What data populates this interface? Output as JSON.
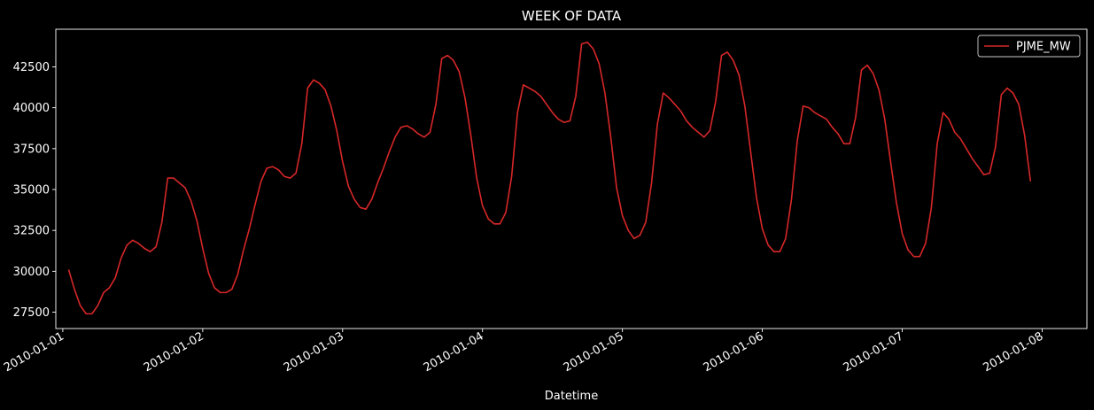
{
  "chart_data": {
    "type": "line",
    "title": "WEEK OF DATA",
    "xlabel": "Datetime",
    "ylabel": "",
    "legend_position": "top-right",
    "grid": false,
    "ylim": [
      26500,
      44800
    ],
    "xlim": [
      -0.05,
      7.32
    ],
    "x_unit": "days since 2010-01-01 00:00",
    "x_ticks": [
      {
        "value": 0,
        "label": "2010-01-01"
      },
      {
        "value": 1,
        "label": "2010-01-02"
      },
      {
        "value": 2,
        "label": "2010-01-03"
      },
      {
        "value": 3,
        "label": "2010-01-04"
      },
      {
        "value": 4,
        "label": "2010-01-05"
      },
      {
        "value": 5,
        "label": "2010-01-06"
      },
      {
        "value": 6,
        "label": "2010-01-07"
      },
      {
        "value": 7,
        "label": "2010-01-08"
      }
    ],
    "y_ticks": [
      27500,
      30000,
      32500,
      35000,
      37500,
      40000,
      42500
    ],
    "y_tick_labels": [
      "27500",
      "30000",
      "32500",
      "35000",
      "37500",
      "40000",
      "42500"
    ],
    "colors": {
      "background": "#000000",
      "text": "#ffffff",
      "line": "#d62728"
    },
    "series": [
      {
        "name": "PJME_MW",
        "color": "#d62728",
        "start_hour": 1,
        "step_hours": 1,
        "values": [
          30100,
          28900,
          27900,
          27400,
          27400,
          27900,
          28700,
          29000,
          29600,
          30800,
          31600,
          31900,
          31700,
          31400,
          31200,
          31500,
          33000,
          35700,
          35700,
          35400,
          35100,
          34300,
          33100,
          31400,
          29900,
          29000,
          28700,
          28700,
          28900,
          29800,
          31300,
          32600,
          34100,
          35500,
          36300,
          36400,
          36200,
          35800,
          35700,
          36000,
          37800,
          41200,
          41700,
          41500,
          41100,
          40100,
          38600,
          36700,
          35200,
          34400,
          33900,
          33800,
          34400,
          35400,
          36300,
          37300,
          38200,
          38800,
          38900,
          38700,
          38400,
          38200,
          38500,
          40200,
          43000,
          43200,
          42900,
          42200,
          40600,
          38300,
          35700,
          34000,
          33200,
          32900,
          32900,
          33600,
          35800,
          39700,
          41400,
          41200,
          41000,
          40700,
          40200,
          39700,
          39300,
          39100,
          39200,
          40700,
          43900,
          44000,
          43600,
          42700,
          40900,
          38200,
          35100,
          33400,
          32500,
          32000,
          32200,
          33000,
          35400,
          39000,
          40900,
          40600,
          40200,
          39800,
          39200,
          38800,
          38500,
          38200,
          38600,
          40400,
          43200,
          43400,
          42900,
          42000,
          40100,
          37300,
          34500,
          32600,
          31600,
          31200,
          31200,
          32000,
          34400,
          38000,
          40100,
          40000,
          39700,
          39500,
          39300,
          38800,
          38400,
          37800,
          37800,
          39400,
          42300,
          42600,
          42100,
          41100,
          39300,
          36700,
          34200,
          32300,
          31300,
          30900,
          30900,
          31700,
          33900,
          37800,
          39700,
          39300,
          38500,
          38100,
          37500,
          36900,
          36400,
          35900,
          36000,
          37600,
          40800,
          41200,
          40900,
          40200,
          38300,
          35500
        ]
      }
    ]
  }
}
